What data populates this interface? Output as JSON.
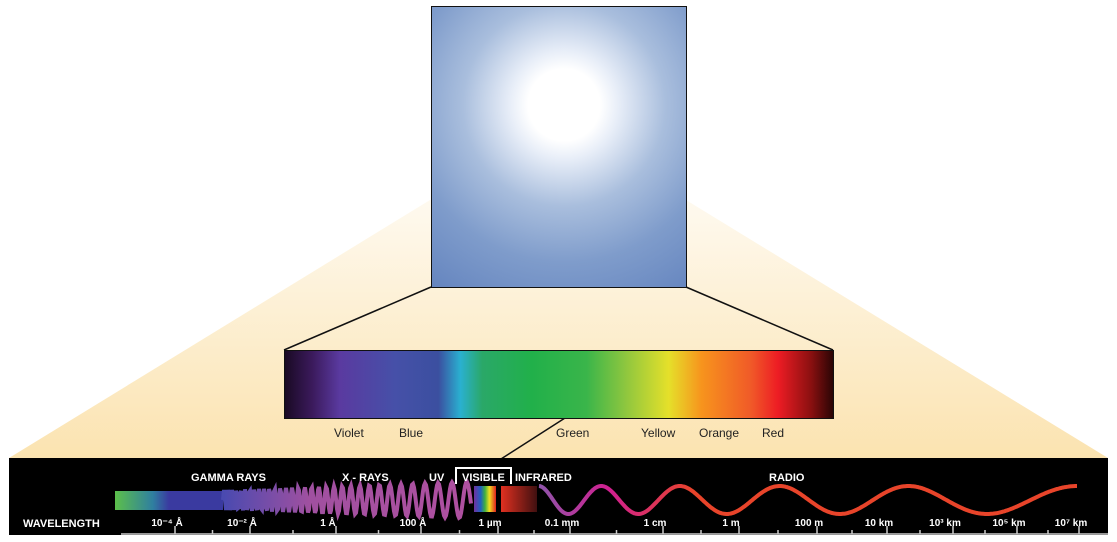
{
  "colors": [
    "Violet",
    "Blue",
    "Green",
    "Yellow",
    "Orange",
    "Red"
  ],
  "bands": {
    "gamma": "GAMMA RAYS",
    "xray": "X - RAYS",
    "uv": "UV",
    "visible": "VISIBLE",
    "infrared": "INFRARED",
    "radio": "RADIO"
  },
  "wavelength_label": "WAVELENGTH",
  "ticks": [
    "10⁻⁴ Å",
    "10⁻² Å",
    "1 Å",
    "100 Å",
    "1 µm",
    "0.1 mm",
    "1 cm",
    "1 m",
    "100 m",
    "10 km",
    "10³ km",
    "10⁵ km",
    "10⁷ km"
  ]
}
